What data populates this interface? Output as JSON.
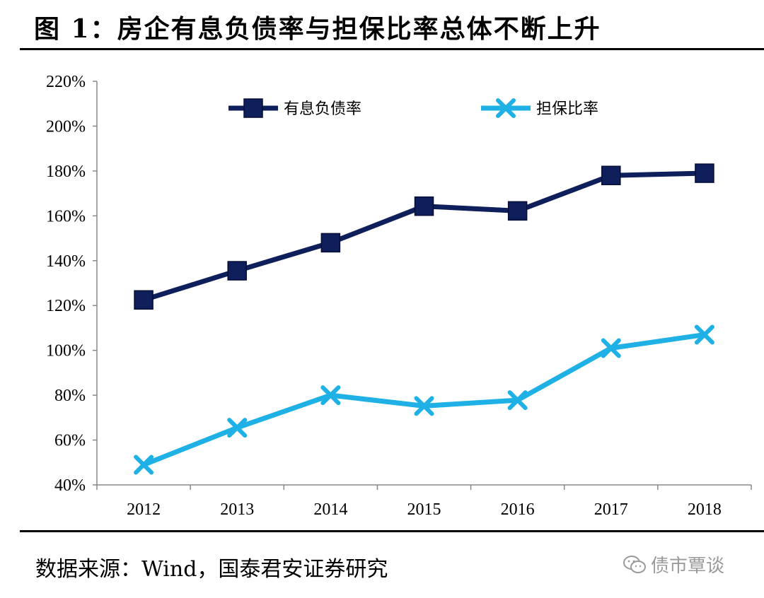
{
  "figure": {
    "title": "图 1：房企有息负债率与担保比率总体不断上升",
    "source": "数据来源：Wind，国泰君安证券研究",
    "watermark": "债市覃谈",
    "watermark_icon": "wechat-icon"
  },
  "chart_data": {
    "type": "line",
    "title": "",
    "xlabel": "",
    "ylabel": "",
    "categories": [
      "2012",
      "2013",
      "2014",
      "2015",
      "2016",
      "2017",
      "2018"
    ],
    "ylim": [
      0.4,
      2.2
    ],
    "yticks": [
      "40%",
      "60%",
      "80%",
      "100%",
      "120%",
      "140%",
      "160%",
      "180%",
      "200%",
      "220%"
    ],
    "grid": false,
    "legend_position": "top",
    "series": [
      {
        "name": "有息负债率",
        "values": [
          1.225,
          1.355,
          1.48,
          1.643,
          1.622,
          1.78,
          1.79
        ],
        "color": "#0f1f5c",
        "marker": "square"
      },
      {
        "name": "担保比率",
        "values": [
          0.49,
          0.655,
          0.8,
          0.752,
          0.778,
          1.01,
          1.07
        ],
        "color": "#1fb1e6",
        "marker": "x"
      }
    ]
  }
}
